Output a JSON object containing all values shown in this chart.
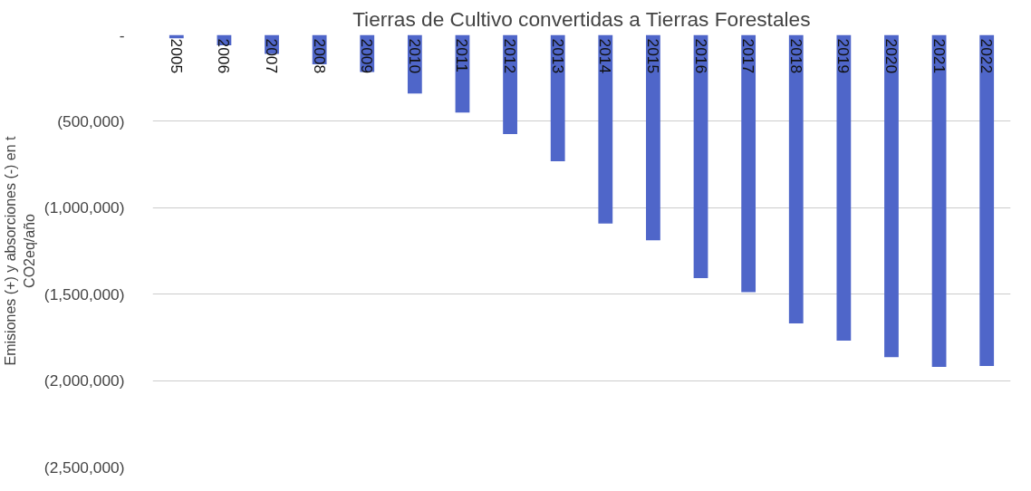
{
  "chart_data": {
    "type": "bar",
    "title": "Tierras de Cultivo convertidas a Tierras Forestales",
    "ylabel": "Emisiones (+) y absorciones (-) en t\nCO2eq/año",
    "categories": [
      "2005",
      "2006",
      "2007",
      "2008",
      "2009",
      "2010",
      "2011",
      "2012",
      "2013",
      "2014",
      "2015",
      "2016",
      "2017",
      "2018",
      "2019",
      "2020",
      "2021",
      "2022"
    ],
    "series": [
      {
        "color": "#4f66c9",
        "values": [
          -20000,
          -60000,
          -110000,
          -170000,
          -215000,
          -340000,
          -450000,
          -574000,
          -731000,
          -1091000,
          -1188000,
          -1407000,
          -1488000,
          -1669000,
          -1769000,
          -1864000,
          -1921000,
          -1915000
        ]
      }
    ],
    "ylim": [
      -2500000,
      0
    ],
    "yticks": [
      {
        "value": 0,
        "label": "-"
      },
      {
        "value": -500000,
        "label": "(500,000)"
      },
      {
        "value": -1000000,
        "label": "(1,000,000)"
      },
      {
        "value": -1500000,
        "label": "(1,500,000)"
      },
      {
        "value": -2000000,
        "label": "(2,000,000)"
      },
      {
        "value": -2500000,
        "label": "(2,500,000)"
      }
    ],
    "grid": "y"
  }
}
